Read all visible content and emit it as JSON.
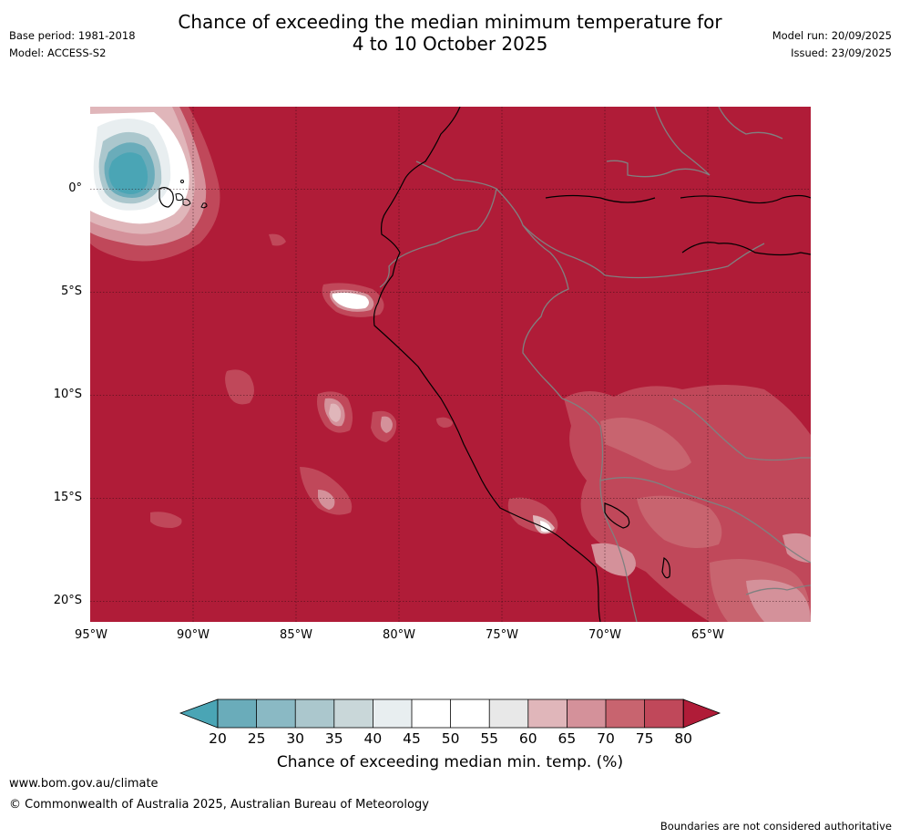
{
  "title": {
    "line1": "Chance of exceeding the median minimum temperature for",
    "line2": "4 to 10 October 2025"
  },
  "meta_left": {
    "base_period": "Base period: 1981-2018",
    "model": "Model: ACCESS-S2"
  },
  "meta_right": {
    "model_run": "Model run: 20/09/2025",
    "issued": "Issued: 23/09/2025"
  },
  "map": {
    "lon_range": [
      -95,
      -60
    ],
    "lat_range": [
      -21,
      4
    ],
    "background_category": "75-80",
    "lat_labels": [
      {
        "value": 0,
        "label": "0°"
      },
      {
        "value": -5,
        "label": "5°S"
      },
      {
        "value": -10,
        "label": "10°S"
      },
      {
        "value": -15,
        "label": "15°S"
      },
      {
        "value": -20,
        "label": "20°S"
      }
    ],
    "lon_labels": [
      {
        "value": -95,
        "label": "95°W"
      },
      {
        "value": -90,
        "label": "90°W"
      },
      {
        "value": -85,
        "label": "85°W"
      },
      {
        "value": -80,
        "label": "80°W"
      },
      {
        "value": -75,
        "label": "75°W"
      },
      {
        "value": -70,
        "label": "70°W"
      },
      {
        "value": -65,
        "label": "65°W"
      }
    ],
    "gridlines": "dotted",
    "coastline_color": "#000000",
    "border_color": "#808080"
  },
  "colorbar": {
    "ticks": [
      "20",
      "25",
      "30",
      "35",
      "40",
      "45",
      "50",
      "55",
      "60",
      "65",
      "70",
      "75",
      "80"
    ],
    "colors": {
      "below20": "#4aa5b5",
      "c20_25": "#6aacba",
      "c25_30": "#8ab9c4",
      "c30_35": "#abc7cd",
      "c35_40": "#c9d7d9",
      "c40_45": "#e8eef0",
      "c45_50": "#ffffff",
      "c50_55": "#ffffff",
      "c55_60": "#e8e8e8",
      "c60_65": "#e0b6ba",
      "c65_70": "#d4919a",
      "c70_75": "#c8646f",
      "c75_80": "#c0485a",
      "above80": "#b01c38"
    },
    "label": "Chance of exceeding median min. temp. (%)"
  },
  "footer": {
    "url": "www.bom.gov.au/climate",
    "copyright": "© Commonwealth of Australia 2025, Australian Bureau of Meteorology",
    "disclaimer": "Boundaries are not considered authoritative"
  }
}
